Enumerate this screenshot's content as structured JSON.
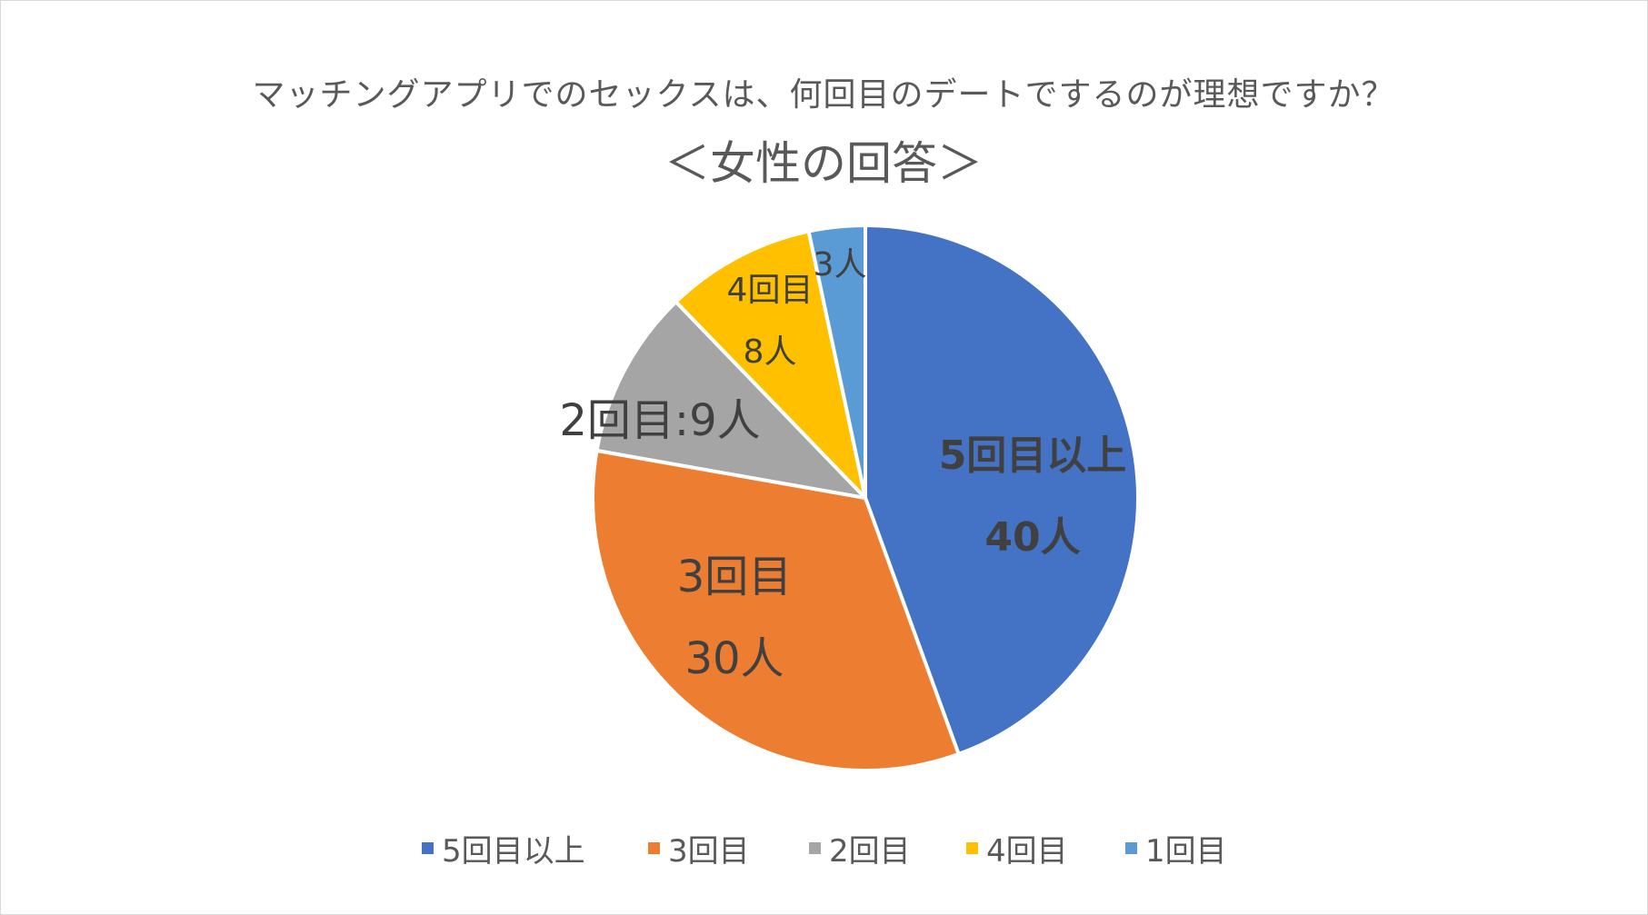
{
  "chart_data": {
    "type": "pie",
    "title": "マッチングアプリでのセックスは、何回目のデートでするのが理想ですか？",
    "subtitle": "＜女性の回答＞",
    "legend_position": "bottom",
    "start_angle_deg": 0,
    "direction": "clockwise",
    "slices": [
      {
        "name": "5回目以上",
        "value": 40,
        "color": "#4472C4",
        "label": [
          "5回目以上",
          "40人"
        ],
        "label_style": "bold"
      },
      {
        "name": "3回目",
        "value": 30,
        "color": "#ED7D31",
        "label": [
          "3回目",
          "30人"
        ],
        "label_style": "large"
      },
      {
        "name": "2回目",
        "value": 9,
        "color": "#A5A5A5",
        "label": [
          "2回目:9人"
        ],
        "label_style": "large"
      },
      {
        "name": "4回目",
        "value": 8,
        "color": "#FFC000",
        "label": [
          "4回目",
          "8人"
        ],
        "label_style": "normal"
      },
      {
        "name": "1回目",
        "value": 3,
        "color": "#5B9BD5",
        "label": [
          "3人"
        ],
        "label_style": "normal"
      }
    ],
    "legend": [
      "5回目以上",
      "3回目",
      "2回目",
      "4回目",
      "1回目"
    ]
  }
}
